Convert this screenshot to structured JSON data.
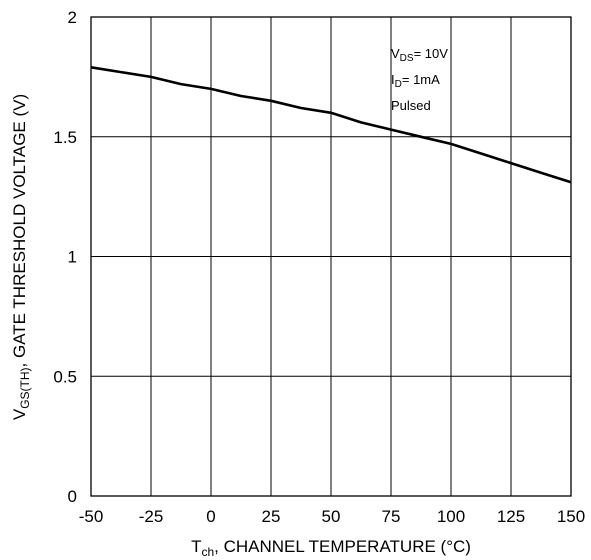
{
  "chart_data": {
    "type": "line",
    "title": "",
    "xlabel": {
      "main": "T",
      "sub": "ch",
      "rest": ", CHANNEL TEMPERATURE (°C)"
    },
    "ylabel": {
      "main": "V",
      "sub": "GS(TH)",
      "rest": ", GATE THRESHOLD VOLTAGE (V)"
    },
    "xlim": [
      -50,
      150
    ],
    "ylim": [
      0,
      2
    ],
    "x_ticks": [
      -50,
      -25,
      0,
      25,
      50,
      75,
      100,
      125,
      150
    ],
    "x_tick_labels": [
      "-50",
      "-25",
      "0",
      "25",
      "50",
      "75",
      "100",
      "125",
      "150"
    ],
    "y_ticks": [
      0,
      0.5,
      1,
      1.5,
      2
    ],
    "y_tick_labels": [
      "0",
      "0.5",
      "1",
      "1.5",
      "2"
    ],
    "grid": true,
    "legend": "none",
    "conditions": [
      {
        "main": "V",
        "sub": "DS",
        "rest": "= 10V"
      },
      {
        "main": "I",
        "sub": "D",
        "rest": "= 1mA"
      },
      {
        "main": "Pulsed",
        "sub": "",
        "rest": ""
      }
    ],
    "series": [
      {
        "x": [
          -50,
          -37.5,
          -25,
          -12.5,
          0,
          12.5,
          25,
          37.5,
          50,
          62.5,
          75,
          87.5,
          100,
          112.5,
          125,
          137.5,
          150
        ],
        "y": [
          1.79,
          1.77,
          1.75,
          1.72,
          1.7,
          1.67,
          1.65,
          1.62,
          1.6,
          1.56,
          1.53,
          1.5,
          1.47,
          1.43,
          1.39,
          1.35,
          1.31
        ]
      }
    ],
    "line_color": "#000000"
  }
}
